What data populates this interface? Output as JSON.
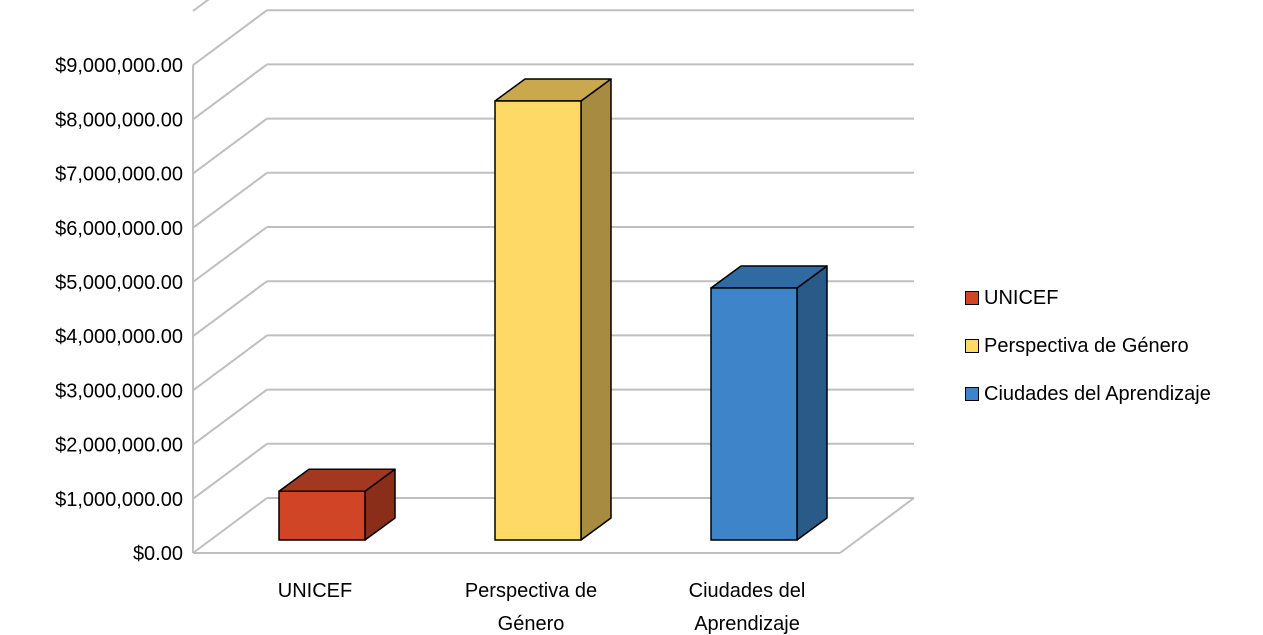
{
  "chart_data": {
    "type": "bar",
    "title": "",
    "xlabel": "",
    "ylabel": "",
    "categories": [
      "UNICEF",
      "Perspectiva de Género",
      "Ciudades del Aprendizaje"
    ],
    "category_lines": [
      [
        "UNICEF"
      ],
      [
        "Perspectiva de",
        "Género"
      ],
      [
        "Ciudades del",
        "Aprendizaje"
      ]
    ],
    "values": [
      900000,
      8100000,
      4650000
    ],
    "ylim": [
      0,
      10000000
    ],
    "yticks": [
      0,
      1000000,
      2000000,
      3000000,
      4000000,
      5000000,
      6000000,
      7000000,
      8000000,
      9000000
    ],
    "ytick_labels": [
      "$0.00",
      "$1,000,000.00",
      "$2,000,000.00",
      "$3,000,000.00",
      "$4,000,000.00",
      "$5,000,000.00",
      "$6,000,000.00",
      "$7,000,000.00",
      "$8,000,000.00",
      "$9,000,000.00"
    ],
    "grid": true,
    "three_d": true,
    "legend_position": "right",
    "legend": [
      "UNICEF",
      "Perspectiva de Género",
      "Ciudades del Aprendizaje"
    ],
    "colors": {
      "front": [
        "#D04526",
        "#FFD966",
        "#3D85C8"
      ],
      "side": [
        "#8A2E1A",
        "#A68B40",
        "#2A5A88"
      ],
      "top": [
        "#A33820",
        "#C9A84E",
        "#2F6AA3"
      ],
      "grid": "#BFBFBF"
    }
  }
}
